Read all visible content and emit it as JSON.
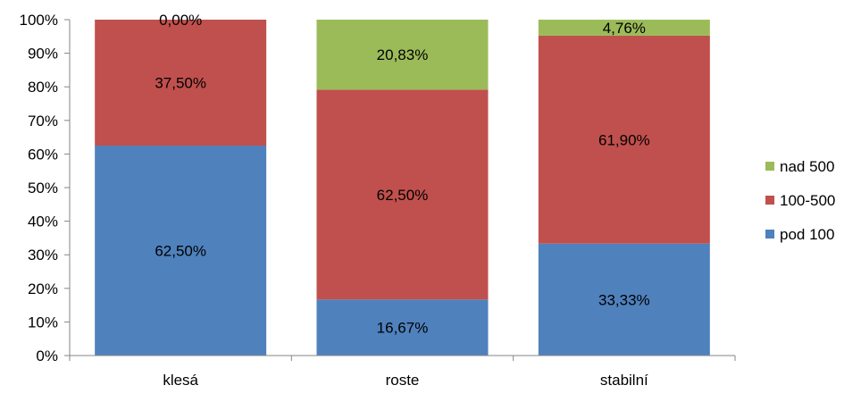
{
  "chart_data": {
    "type": "bar",
    "stacked": true,
    "categories": [
      "klesá",
      "roste",
      "stabilní"
    ],
    "series": [
      {
        "name": "pod 100",
        "values": [
          62.5,
          16.67,
          33.33
        ],
        "labels": [
          "62,50%",
          "16,67%",
          "33,33%"
        ],
        "color": "#4F81BD"
      },
      {
        "name": "100-500",
        "values": [
          37.5,
          62.5,
          61.9
        ],
        "labels": [
          "37,50%",
          "62,50%",
          "61,90%"
        ],
        "color": "#C0504D"
      },
      {
        "name": "nad 500",
        "values": [
          0,
          20.83,
          4.76
        ],
        "labels": [
          "0,00%",
          "20,83%",
          "4,76%"
        ],
        "color": "#9BBB59"
      }
    ],
    "ylim": [
      0,
      100
    ],
    "yticks": [
      0,
      10,
      20,
      30,
      40,
      50,
      60,
      70,
      80,
      90,
      100
    ],
    "ytick_labels": [
      "0%",
      "10%",
      "20%",
      "30%",
      "40%",
      "50%",
      "60%",
      "70%",
      "80%",
      "90%",
      "100%"
    ],
    "legend_order": [
      "nad 500",
      "100-500",
      "pod 100"
    ],
    "legend_position": "right",
    "grid": false,
    "title": "",
    "xlabel": "",
    "ylabel": ""
  }
}
